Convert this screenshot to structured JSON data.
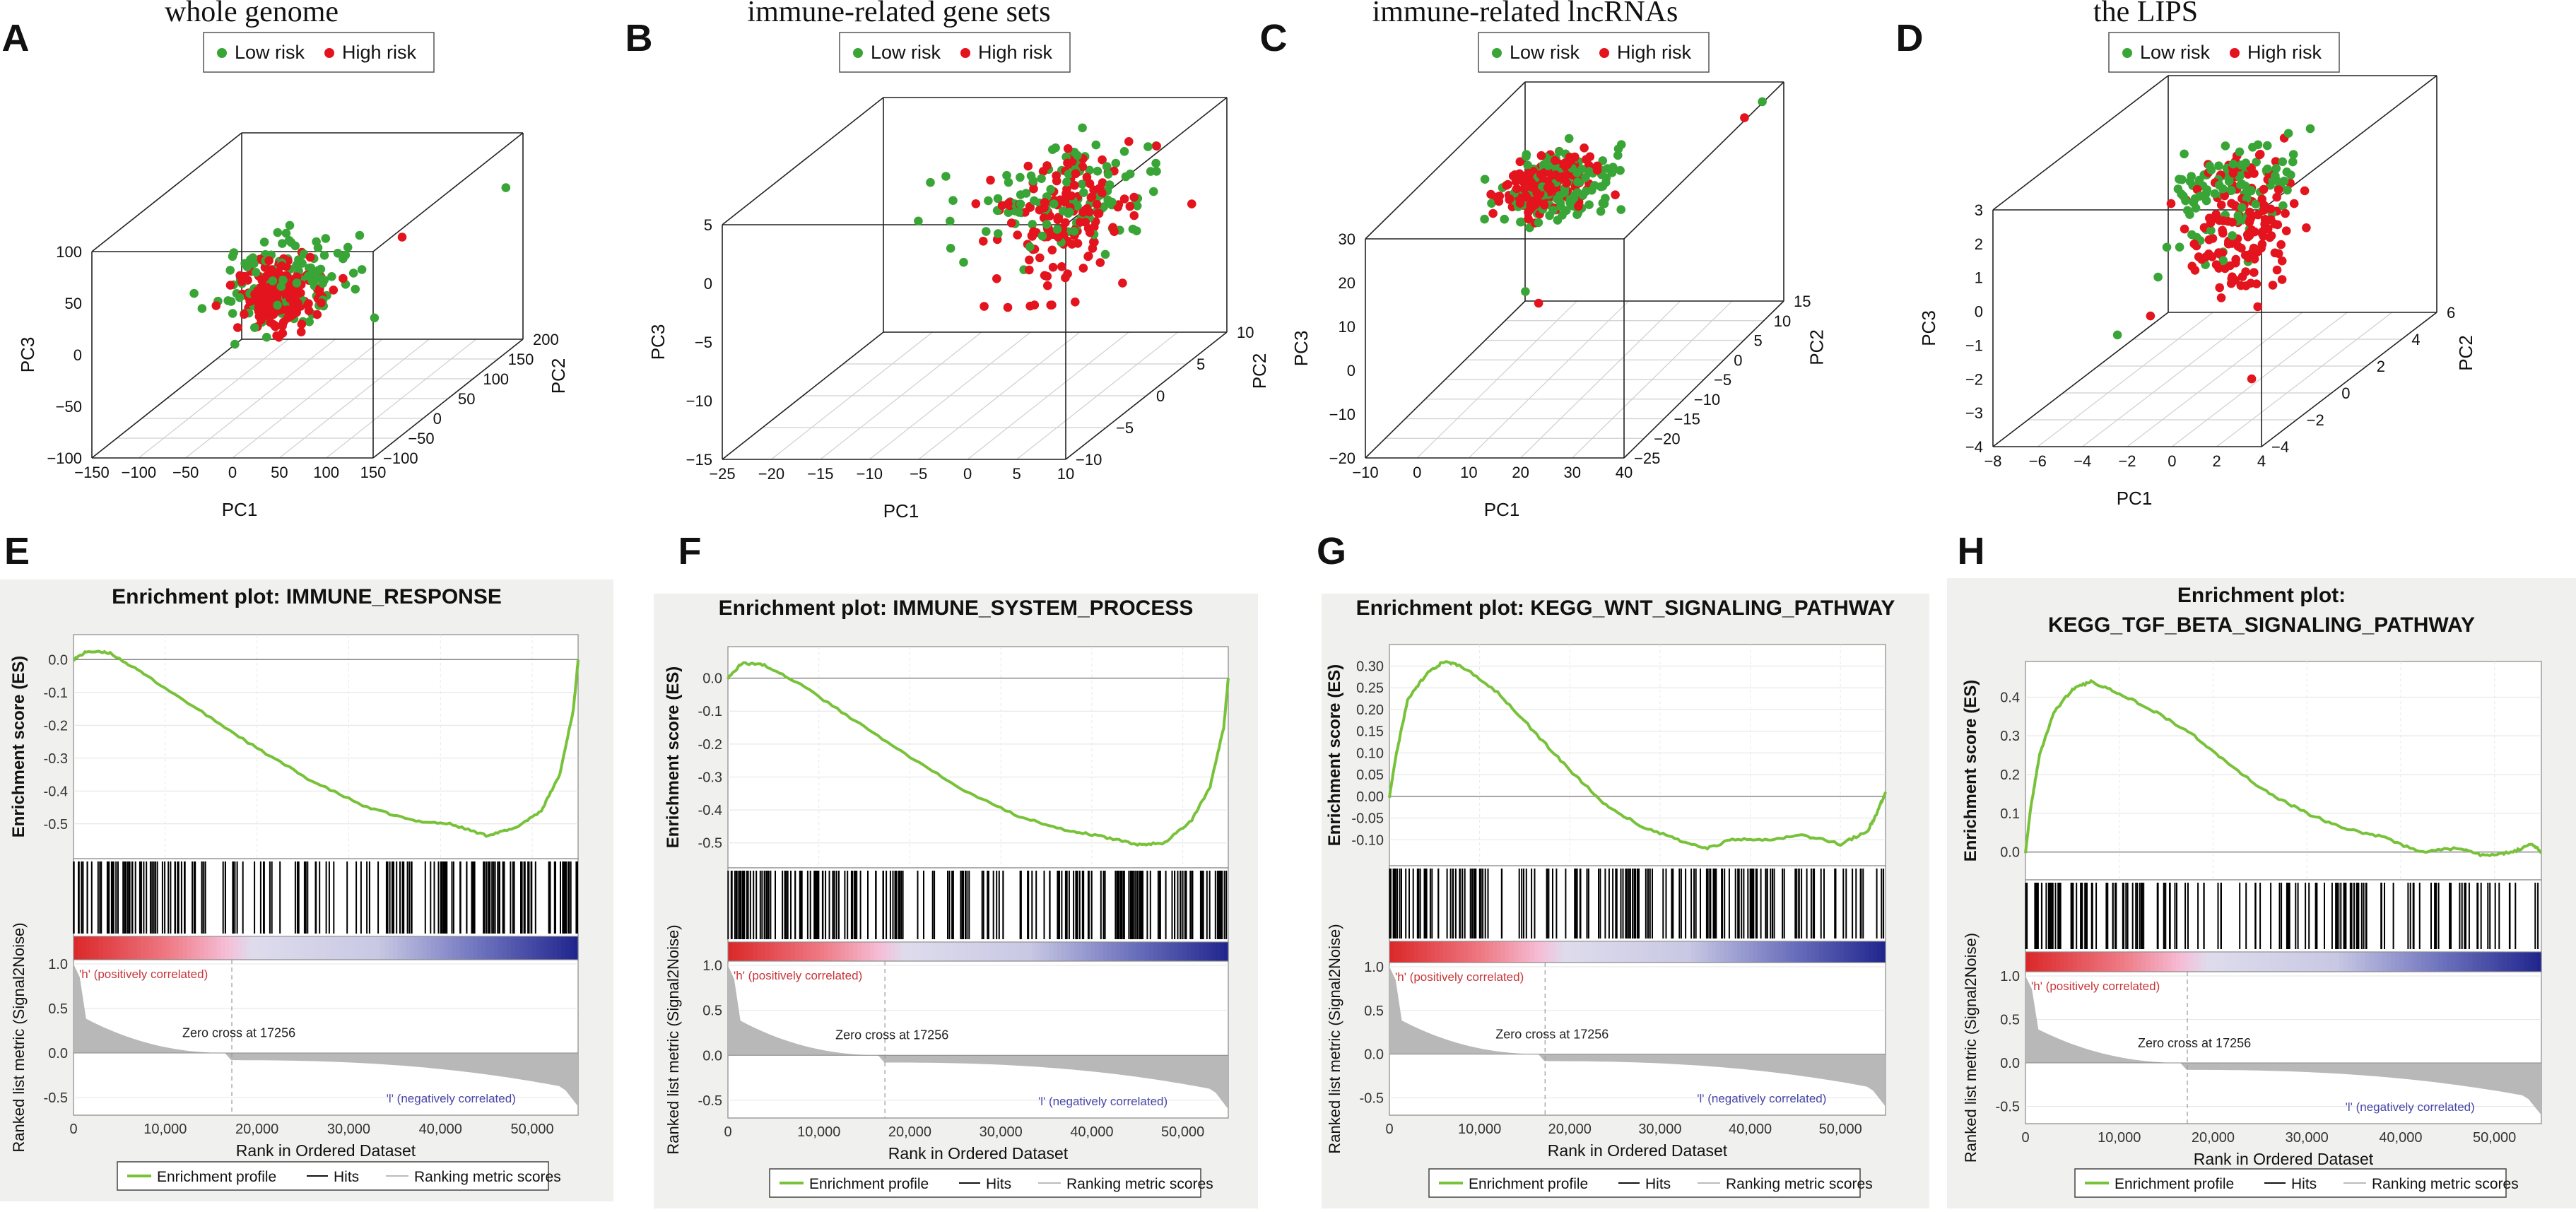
{
  "colors": {
    "low_risk": "#3aa537",
    "high_risk": "#e3141d",
    "es_curve": "#78c23a",
    "hits": "#000000",
    "metric": "#b8b8b8",
    "panel_bg": "#f0f0ef",
    "pos_label": "#c8363a",
    "neg_label": "#4747a8"
  },
  "chart_data": [
    {
      "panel": "A",
      "type": "scatter",
      "title": "whole genome",
      "legend": [
        "Low risk",
        "High risk"
      ],
      "xlabel": "PC1",
      "ylabel": "PC2",
      "zlabel": "PC3",
      "xticks": [
        "−150",
        "−100",
        "−50",
        "0",
        "50",
        "100",
        "150"
      ],
      "yticks": [
        "−100",
        "−50",
        "0",
        "50",
        "100",
        "150",
        "200"
      ],
      "zticks": [
        "−100",
        "−50",
        "0",
        "50",
        "100"
      ],
      "xlim": [
        -150,
        150
      ],
      "ylim": [
        -150,
        200
      ],
      "zlim": [
        -100,
        100
      ],
      "groups": [
        {
          "name": "Low risk",
          "n": 120,
          "center": [
            -15,
            10,
            20
          ],
          "spread": [
            35,
            35,
            22
          ]
        },
        {
          "name": "High risk",
          "n": 170,
          "center": [
            -20,
            5,
            8
          ],
          "spread": [
            22,
            22,
            18
          ]
        }
      ],
      "outliers": [
        [
          150,
          160,
          60
        ],
        [
          85,
          60,
          45
        ],
        [
          40,
          -20,
          70
        ]
      ]
    },
    {
      "panel": "B",
      "type": "scatter",
      "title": "immune-related gene sets",
      "legend": [
        "Low risk",
        "High risk"
      ],
      "xlabel": "PC1",
      "ylabel": "PC2",
      "zlabel": "PC3",
      "xticks": [
        "−25",
        "−20",
        "−15",
        "−10",
        "−5",
        "0",
        "5",
        "10"
      ],
      "yticks": [
        "−10",
        "−5",
        "0",
        "5",
        "10"
      ],
      "zticks": [
        "−15",
        "−10",
        "−5",
        "0",
        "5"
      ],
      "xlim": [
        -25,
        10
      ],
      "ylim": [
        -12,
        12
      ],
      "zlim": [
        -15,
        7
      ],
      "groups": [
        {
          "name": "Low risk",
          "n": 110,
          "center": [
            1,
            1,
            3
          ],
          "spread": [
            4,
            4,
            2.2
          ]
        },
        {
          "name": "High risk",
          "n": 150,
          "center": [
            2,
            0,
            2
          ],
          "spread": [
            3,
            3,
            3
          ]
        }
      ],
      "outliers": [
        [
          -12,
          0,
          5
        ],
        [
          -6,
          -2,
          4
        ]
      ]
    },
    {
      "panel": "C",
      "type": "scatter",
      "title": "immune-related lncRNAs",
      "legend": [
        "Low risk",
        "High risk"
      ],
      "xlabel": "PC1",
      "ylabel": "PC2",
      "zlabel": "PC3",
      "xticks": [
        "−10",
        "0",
        "10",
        "20",
        "30",
        "40"
      ],
      "yticks": [
        "−25",
        "−20",
        "−15",
        "−10",
        "−5",
        "0",
        "5",
        "10",
        "15"
      ],
      "zticks": [
        "−20",
        "−10",
        "0",
        "10",
        "20",
        "30"
      ],
      "xlim": [
        -10,
        40
      ],
      "ylim": [
        -28,
        15
      ],
      "zlim": [
        -20,
        30
      ],
      "groups": [
        {
          "name": "Low risk",
          "n": 120,
          "center": [
            8,
            0,
            19
          ],
          "spread": [
            5,
            4,
            3
          ]
        },
        {
          "name": "High risk",
          "n": 160,
          "center": [
            6,
            -1,
            20
          ],
          "spread": [
            4,
            3,
            2
          ]
        }
      ],
      "outliers": [
        [
          38,
          12,
          28
        ],
        [
          36,
          10,
          26
        ],
        [
          8,
          -10,
          3
        ],
        [
          12,
          -12,
          2
        ]
      ]
    },
    {
      "panel": "D",
      "type": "scatter",
      "title": "the LIPS",
      "legend": [
        "Low risk",
        "High risk"
      ],
      "xlabel": "PC1",
      "ylabel": "PC2",
      "zlabel": "PC3",
      "xticks": [
        "−8",
        "−6",
        "−4",
        "−2",
        "0",
        "2",
        "4"
      ],
      "yticks": [
        "−4",
        "−2",
        "0",
        "2",
        "4",
        "6"
      ],
      "zticks": [
        "−4",
        "−3",
        "−2",
        "−1",
        "0",
        "1",
        "2",
        "3"
      ],
      "xlim": [
        -8,
        4
      ],
      "ylim": [
        -5,
        6
      ],
      "zlim": [
        -4,
        3
      ],
      "groups": [
        {
          "name": "Low risk",
          "n": 110,
          "center": [
            -1.5,
            1,
            1.4
          ],
          "spread": [
            1.2,
            1.2,
            0.7
          ]
        },
        {
          "name": "High risk",
          "n": 150,
          "center": [
            -0.5,
            0,
            0.6
          ],
          "spread": [
            0.9,
            0.9,
            1.1
          ]
        }
      ],
      "outliers": [
        [
          -6,
          0,
          -2.5
        ],
        [
          0,
          0,
          -3.8
        ]
      ]
    },
    {
      "panel": "E",
      "type": "line",
      "title": "Enrichment plot: IMMUNE_RESPONSE",
      "xlabel": "Rank in Ordered Dataset",
      "ylabel_es": "Enrichment score (ES)",
      "ylabel_metric": "Ranked list metric (Signal2Noise)",
      "es_ticks": [
        "0.0",
        "-0.1",
        "-0.2",
        "-0.3",
        "-0.4",
        "-0.5"
      ],
      "metric_ticks": [
        "1.0",
        "0.5",
        "0.0",
        "-0.5"
      ],
      "xticks": [
        "0",
        "10,000",
        "20,000",
        "30,000",
        "40,000",
        "50,000"
      ],
      "es_ylim": [
        -0.58,
        0.05
      ],
      "xlim": [
        0,
        55000
      ],
      "es_points": [
        [
          0,
          0.0
        ],
        [
          1500,
          0.025
        ],
        [
          4000,
          0.02
        ],
        [
          8000,
          -0.05
        ],
        [
          14000,
          -0.16
        ],
        [
          20000,
          -0.27
        ],
        [
          26000,
          -0.37
        ],
        [
          32000,
          -0.45
        ],
        [
          37000,
          -0.49
        ],
        [
          41000,
          -0.5
        ],
        [
          45000,
          -0.535
        ],
        [
          48000,
          -0.515
        ],
        [
          51000,
          -0.46
        ],
        [
          53000,
          -0.35
        ],
        [
          54500,
          -0.15
        ],
        [
          55000,
          0.0
        ]
      ],
      "hit_density": [
        0.9,
        0.95,
        0.6,
        0.5,
        0.4,
        0.3,
        0.6,
        0.8,
        1.0,
        1.0
      ],
      "zero_cross": "Zero cross at 17256",
      "zero_cross_x": 17256,
      "pos_label": "'h' (positively correlated)",
      "neg_label": "'l' (negatively correlated)",
      "legend": [
        "Enrichment profile",
        "Hits",
        "Ranking metric scores"
      ]
    },
    {
      "panel": "F",
      "type": "line",
      "title": "Enrichment plot: IMMUNE_SYSTEM_PROCESS",
      "xlabel": "Rank in Ordered Dataset",
      "ylabel_es": "Enrichment score (ES)",
      "ylabel_metric": "Ranked list metric (Signal2Noise)",
      "es_ticks": [
        "0.0",
        "-0.1",
        "-0.2",
        "-0.3",
        "-0.4",
        "-0.5"
      ],
      "metric_ticks": [
        "1.0",
        "0.5",
        "0.0",
        "-0.5"
      ],
      "xticks": [
        "0",
        "10,000",
        "20,000",
        "30,000",
        "40,000",
        "50,000"
      ],
      "es_ylim": [
        -0.55,
        0.07
      ],
      "xlim": [
        0,
        55000
      ],
      "es_points": [
        [
          0,
          0.0
        ],
        [
          1500,
          0.045
        ],
        [
          4000,
          0.04
        ],
        [
          8000,
          -0.02
        ],
        [
          14000,
          -0.13
        ],
        [
          20000,
          -0.24
        ],
        [
          26000,
          -0.34
        ],
        [
          32000,
          -0.42
        ],
        [
          37000,
          -0.46
        ],
        [
          41000,
          -0.48
        ],
        [
          45000,
          -0.505
        ],
        [
          48000,
          -0.5
        ],
        [
          51000,
          -0.43
        ],
        [
          53000,
          -0.33
        ],
        [
          54500,
          -0.15
        ],
        [
          55000,
          0.0
        ]
      ],
      "hit_density": [
        1.0,
        1.0,
        0.7,
        0.6,
        0.5,
        0.5,
        0.7,
        0.9,
        1.0,
        1.0
      ],
      "zero_cross": "Zero cross at 17256",
      "zero_cross_x": 17256,
      "pos_label": "'h' (positively correlated)",
      "neg_label": "'l' (negatively correlated)",
      "legend": [
        "Enrichment profile",
        "Hits",
        "Ranking metric scores"
      ]
    },
    {
      "panel": "G",
      "type": "line",
      "title": "Enrichment plot: KEGG_WNT_SIGNALING_PATHWAY",
      "xlabel": "Rank in Ordered Dataset",
      "ylabel_es": "Enrichment score (ES)",
      "ylabel_metric": "Ranked list metric (Signal2Noise)",
      "es_ticks": [
        "0.30",
        "0.25",
        "0.20",
        "0.15",
        "0.10",
        "0.05",
        "0.00",
        "-0.05",
        "-0.10"
      ],
      "metric_ticks": [
        "1.0",
        "0.5",
        "0.0",
        "-0.5"
      ],
      "xticks": [
        "0",
        "10,000",
        "20,000",
        "30,000",
        "40,000",
        "50,000"
      ],
      "es_ylim": [
        -0.14,
        0.33
      ],
      "xlim": [
        0,
        55000
      ],
      "es_points": [
        [
          0,
          0.0
        ],
        [
          800,
          0.1
        ],
        [
          2000,
          0.22
        ],
        [
          4000,
          0.28
        ],
        [
          6000,
          0.31
        ],
        [
          8000,
          0.3
        ],
        [
          12000,
          0.24
        ],
        [
          16000,
          0.15
        ],
        [
          20000,
          0.06
        ],
        [
          24000,
          -0.02
        ],
        [
          28000,
          -0.07
        ],
        [
          32000,
          -0.1
        ],
        [
          35000,
          -0.12
        ],
        [
          38000,
          -0.1
        ],
        [
          42000,
          -0.1
        ],
        [
          46000,
          -0.09
        ],
        [
          50000,
          -0.11
        ],
        [
          53000,
          -0.08
        ],
        [
          54000,
          -0.04
        ],
        [
          55000,
          0.01
        ]
      ],
      "hit_density": [
        1.0,
        0.8,
        0.3,
        0.5,
        0.8,
        0.6,
        0.7,
        0.8,
        0.5,
        0.4
      ],
      "zero_cross": "Zero cross at 17256",
      "zero_cross_x": 17256,
      "pos_label": "'h' (positively correlated)",
      "neg_label": "'l' (negatively correlated)",
      "legend": [
        "Enrichment profile",
        "Hits",
        "Ranking metric scores"
      ]
    },
    {
      "panel": "H",
      "type": "line",
      "title": "Enrichment plot:",
      "title2": "KEGG_TGF_BETA_SIGNALING_PATHWAY",
      "xlabel": "Rank in Ordered Dataset",
      "ylabel_es": "Enrichment score (ES)",
      "ylabel_metric": "Ranked list metric (Signal2Noise)",
      "es_ticks": [
        "0.4",
        "0.3",
        "0.2",
        "0.1",
        "0.0"
      ],
      "metric_ticks": [
        "1.0",
        "0.5",
        "0.0",
        "-0.5"
      ],
      "xticks": [
        "0",
        "10,000",
        "20,000",
        "30,000",
        "40,000",
        "50,000"
      ],
      "es_ylim": [
        -0.05,
        0.47
      ],
      "xlim": [
        0,
        55000
      ],
      "es_points": [
        [
          0,
          0.0
        ],
        [
          600,
          0.12
        ],
        [
          1500,
          0.25
        ],
        [
          3000,
          0.36
        ],
        [
          5000,
          0.42
        ],
        [
          7000,
          0.44
        ],
        [
          10000,
          0.41
        ],
        [
          14000,
          0.36
        ],
        [
          18000,
          0.3
        ],
        [
          22000,
          0.22
        ],
        [
          26000,
          0.15
        ],
        [
          30000,
          0.1
        ],
        [
          34000,
          0.06
        ],
        [
          38000,
          0.04
        ],
        [
          42000,
          0.0
        ],
        [
          46000,
          0.01
        ],
        [
          49000,
          -0.01
        ],
        [
          52000,
          0.0
        ],
        [
          54000,
          0.02
        ],
        [
          55000,
          0.0
        ]
      ],
      "hit_density": [
        1.0,
        0.8,
        0.6,
        0.3,
        0.3,
        0.5,
        0.9,
        0.4,
        0.5,
        0.3
      ],
      "zero_cross": "Zero cross at 17256",
      "zero_cross_x": 17256,
      "pos_label": "'h' (positively correlated)",
      "neg_label": "'l' (negatively correlated)",
      "legend": [
        "Enrichment profile",
        "Hits",
        "Ranking metric scores"
      ]
    }
  ]
}
